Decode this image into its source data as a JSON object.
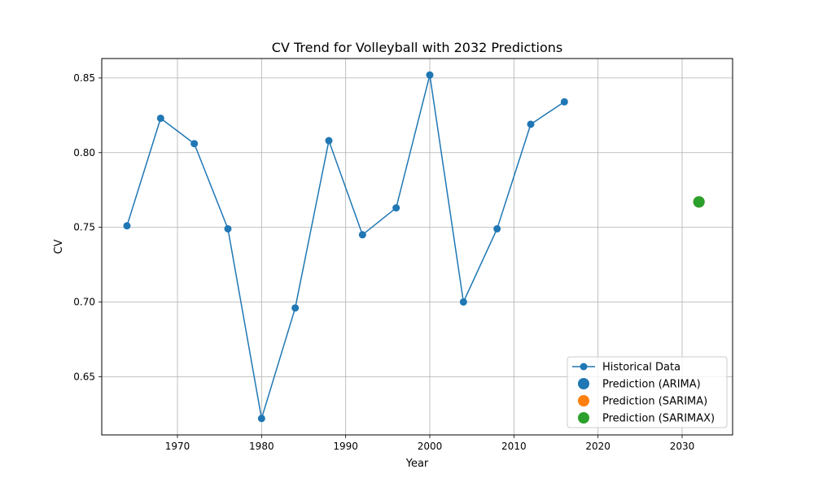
{
  "chart_data": {
    "type": "line",
    "title": "CV Trend for Volleyball with 2032 Predictions",
    "xlabel": "Year",
    "ylabel": "CV",
    "xlim": [
      1961,
      2036
    ],
    "ylim": [
      0.611,
      0.863
    ],
    "x_ticks": [
      1970,
      1980,
      1990,
      2000,
      2010,
      2020,
      2030
    ],
    "y_ticks": [
      0.65,
      0.7,
      0.75,
      0.8,
      0.85
    ],
    "x_tick_labels": [
      "1970",
      "1980",
      "1990",
      "2000",
      "2010",
      "2020",
      "2030"
    ],
    "y_tick_labels": [
      "0.65",
      "0.70",
      "0.75",
      "0.80",
      "0.85"
    ],
    "grid": true,
    "legend_position": "lower right",
    "series": [
      {
        "name": "Historical Data",
        "kind": "line-marker",
        "color": "#1f77b4",
        "x": [
          1964,
          1968,
          1972,
          1976,
          1980,
          1984,
          1988,
          1992,
          1996,
          2000,
          2004,
          2008,
          2012,
          2016
        ],
        "y": [
          0.751,
          0.823,
          0.806,
          0.749,
          0.622,
          0.696,
          0.808,
          0.745,
          0.763,
          0.852,
          0.7,
          0.749,
          0.819,
          0.834
        ]
      },
      {
        "name": "Prediction (ARIMA)",
        "kind": "point",
        "color": "#1f77b4",
        "x": [
          2032
        ],
        "y": [
          0.767
        ]
      },
      {
        "name": "Prediction (SARIMA)",
        "kind": "point",
        "color": "#ff7f0e",
        "x": [
          2032
        ],
        "y": [
          0.767
        ]
      },
      {
        "name": "Prediction (SARIMAX)",
        "kind": "point",
        "color": "#2ca02c",
        "x": [
          2032
        ],
        "y": [
          0.767
        ]
      }
    ]
  }
}
